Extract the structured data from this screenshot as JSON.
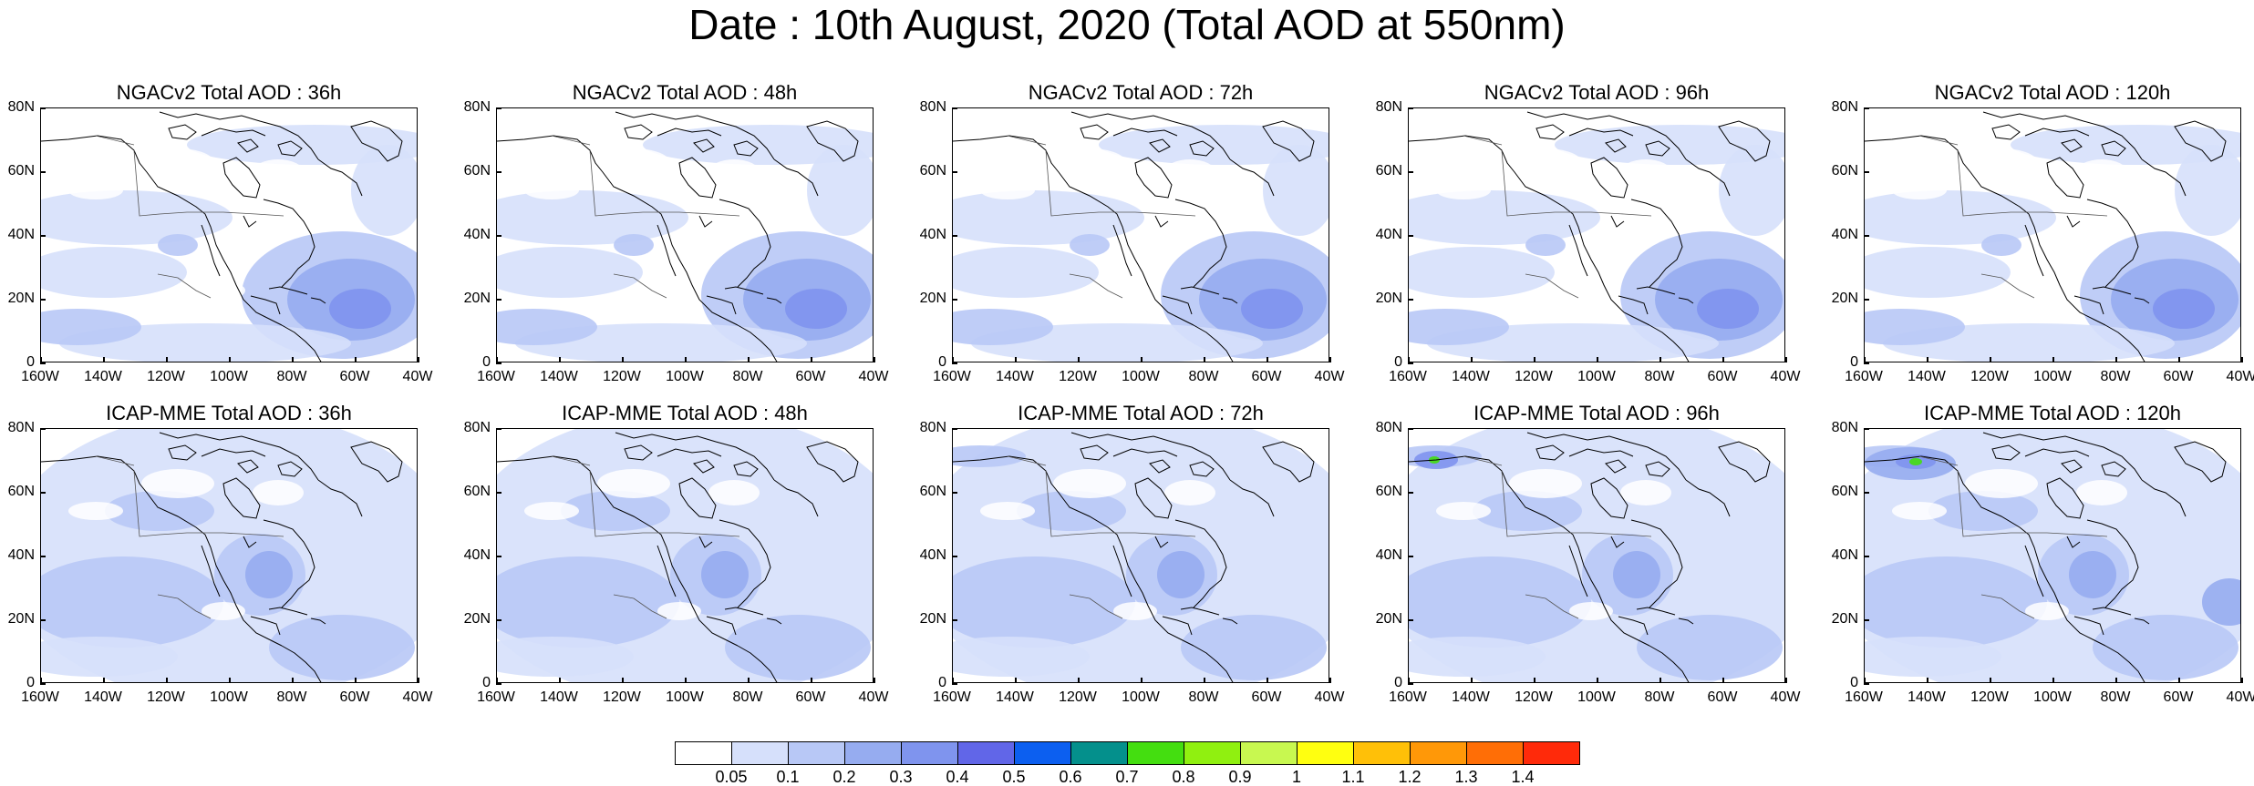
{
  "title": "Date : 10th August, 2020 (Total AOD at 550nm)",
  "lat_labels": [
    "80N",
    "60N",
    "40N",
    "20N",
    "0"
  ],
  "lon_labels": [
    "160W",
    "140W",
    "120W",
    "100W",
    "80W",
    "60W",
    "40W"
  ],
  "panels": [
    {
      "title": "NGACv2 Total AOD : 36h",
      "model": "NGACv2",
      "lead": "36h"
    },
    {
      "title": "NGACv2 Total AOD : 48h",
      "model": "NGACv2",
      "lead": "48h"
    },
    {
      "title": "NGACv2 Total AOD : 72h",
      "model": "NGACv2",
      "lead": "72h"
    },
    {
      "title": "NGACv2 Total AOD : 96h",
      "model": "NGACv2",
      "lead": "96h"
    },
    {
      "title": "NGACv2 Total AOD : 120h",
      "model": "NGACv2",
      "lead": "120h"
    },
    {
      "title": "ICAP-MME Total AOD : 36h",
      "model": "ICAP-MME",
      "lead": "36h"
    },
    {
      "title": "ICAP-MME Total AOD : 48h",
      "model": "ICAP-MME",
      "lead": "48h"
    },
    {
      "title": "ICAP-MME Total AOD : 72h",
      "model": "ICAP-MME",
      "lead": "72h"
    },
    {
      "title": "ICAP-MME Total AOD : 96h",
      "model": "ICAP-MME",
      "lead": "96h"
    },
    {
      "title": "ICAP-MME Total AOD : 120h",
      "model": "ICAP-MME",
      "lead": "120h"
    }
  ],
  "colorbar": {
    "labels": [
      "0.05",
      "0.1",
      "0.2",
      "0.3",
      "0.4",
      "0.5",
      "0.6",
      "0.7",
      "0.8",
      "0.9",
      "1",
      "1.1",
      "1.2",
      "1.3",
      "1.4"
    ],
    "colors": [
      "#ffffff",
      "#d6e0fb",
      "#b8c8f6",
      "#96acf0",
      "#7f94ee",
      "#6166e8",
      "#0c5ff0",
      "#04908c",
      "#44de10",
      "#90f010",
      "#c8f850",
      "#ffff10",
      "#ffc008",
      "#ff9808",
      "#ff6e06",
      "#ff2a0a"
    ]
  }
}
